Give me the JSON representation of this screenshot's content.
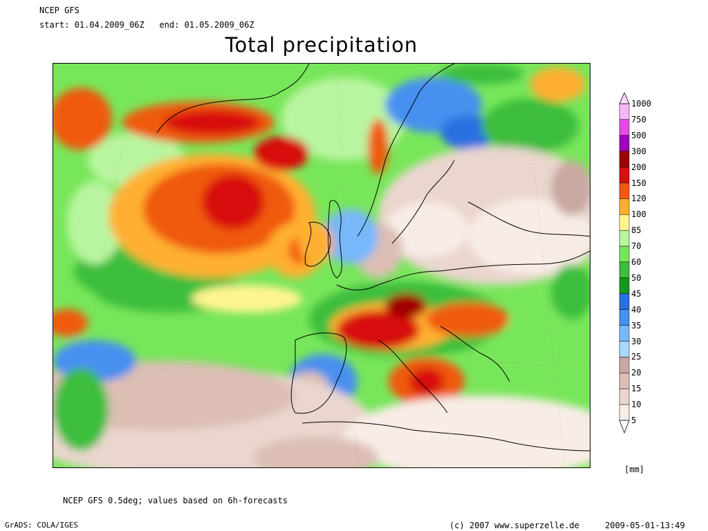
{
  "header": {
    "model": "NCEP GFS",
    "start_label": "start:",
    "start": "01.04.2009_06Z",
    "end_label": "end:",
    "end": "01.05.2009_06Z"
  },
  "title": "Total precipitation",
  "legend": {
    "levels": [
      "1000",
      "750",
      "500",
      "300",
      "200",
      "150",
      "120",
      "100",
      "85",
      "70",
      "60",
      "50",
      "45",
      "40",
      "35",
      "30",
      "25",
      "20",
      "15",
      "10",
      "5"
    ],
    "colors": [
      "#f7b7f7",
      "#e84ae8",
      "#a000c0",
      "#a00000",
      "#d81010",
      "#f05a0a",
      "#ffb030",
      "#fff590",
      "#b9f5a0",
      "#78e65a",
      "#3cbe3c",
      "#16961e",
      "#2a6fe0",
      "#4690f0",
      "#78b8fa",
      "#a8d8fc",
      "#c8a8a0",
      "#dcbeb4",
      "#ead6ce",
      "#f8ece6"
    ],
    "unit": "[mm]"
  },
  "footer": {
    "note": "NCEP GFS 0.5deg; values based on 6h-forecasts",
    "software": "GrADS: COLA/IGES",
    "copyright": "(c) 2007 www.superzelle.de",
    "timestamp": "2009-05-01-13:49"
  }
}
